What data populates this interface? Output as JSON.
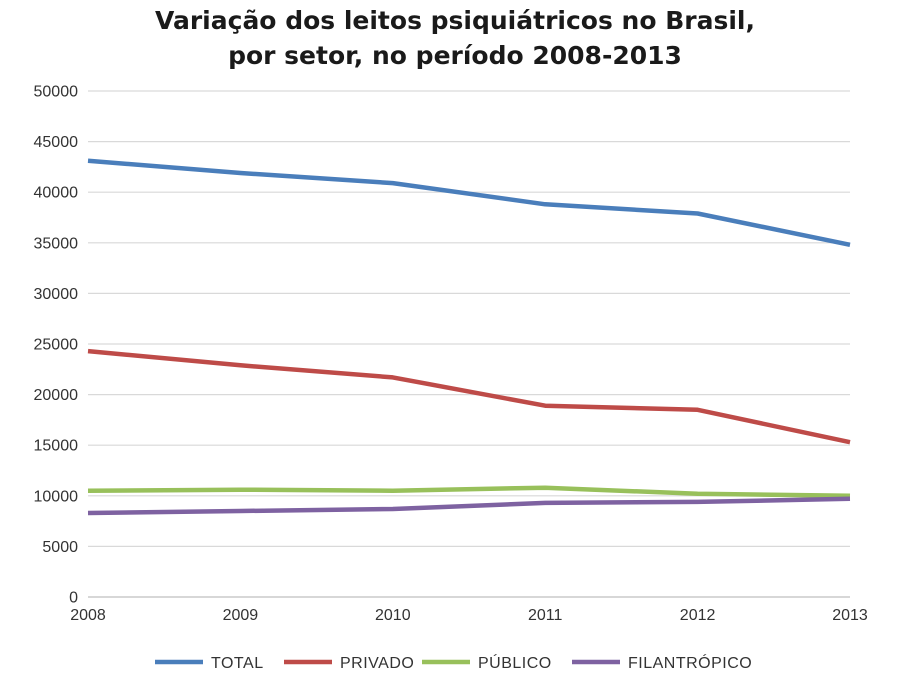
{
  "chart_data": {
    "type": "line",
    "title_lines": [
      "Variação dos leitos psiquiátricos no Brasil,",
      "por setor, no período 2008-2013"
    ],
    "x": [
      "2008",
      "2009",
      "2010",
      "2011",
      "2012",
      "2013"
    ],
    "y_ticks": [
      "0",
      "5000",
      "10000",
      "15000",
      "20000",
      "25000",
      "30000",
      "35000",
      "40000",
      "45000",
      "50000"
    ],
    "ylim": [
      0,
      50000
    ],
    "grid": true,
    "legend_position": "bottom",
    "series": [
      {
        "name": "TOTAL",
        "color": "#4a7ebb",
        "values": [
          43100,
          41900,
          40900,
          38800,
          37900,
          34800
        ]
      },
      {
        "name": "PRIVADO",
        "color": "#be4b48",
        "values": [
          24300,
          22900,
          21700,
          18900,
          18500,
          15300
        ]
      },
      {
        "name": "PÚBLICO",
        "color": "#98c05b",
        "values": [
          10500,
          10600,
          10500,
          10800,
          10200,
          10000
        ]
      },
      {
        "name": "FILANTRÓPICO",
        "color": "#7e62a1",
        "values": [
          8300,
          8500,
          8700,
          9300,
          9400,
          9700
        ]
      }
    ]
  }
}
